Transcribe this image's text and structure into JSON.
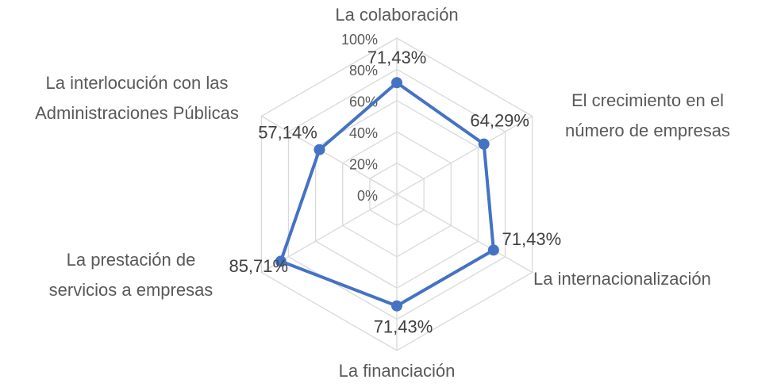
{
  "chart_data": {
    "type": "radar",
    "categories": [
      "La colaboración",
      "El crecimiento en el número de empresas",
      "La internacionalización",
      "La financiación",
      "La prestación de servicios a empresas",
      "La interlocución con las Administraciones Públicas"
    ],
    "series": [
      {
        "color": "#4472c4",
        "values": [
          71.43,
          64.29,
          71.43,
          71.43,
          85.71,
          57.14
        ],
        "value_labels": [
          "71,43%",
          "64,29%",
          "71,43%",
          "71,43%",
          "85,71%",
          "57,14%"
        ]
      }
    ],
    "ylim": [
      0,
      100
    ],
    "yticks": [
      {
        "value": 0,
        "label": "0%"
      },
      {
        "value": 20,
        "label": "20%"
      },
      {
        "value": 40,
        "label": "40%"
      },
      {
        "value": 60,
        "label": "60%"
      },
      {
        "value": 80,
        "label": "80%"
      },
      {
        "value": 100,
        "label": "100%"
      }
    ],
    "grid": true
  }
}
